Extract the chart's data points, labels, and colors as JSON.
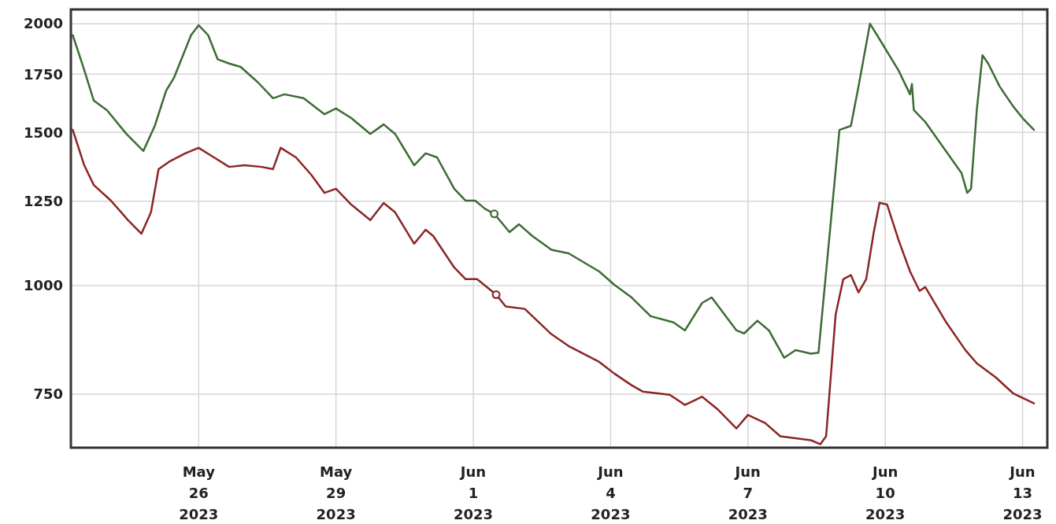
{
  "chart_data": {
    "type": "line",
    "log": true,
    "grid": true,
    "line_style": "solid",
    "ylim": [
      651,
      2077
    ],
    "yticks": [
      750,
      1000,
      1250,
      1500,
      1750,
      2000
    ],
    "xlim": [
      "2023-05-23T05:00",
      "2023-06-13T13:00"
    ],
    "xticks": [
      {
        "value": "2023-05-26",
        "label": "May 26 2023"
      },
      {
        "value": "2023-05-29",
        "label": "May 29 2023"
      },
      {
        "value": "2023-06-01",
        "label": "Jun 1 2023"
      },
      {
        "value": "2023-06-04",
        "label": "Jun 4 2023"
      },
      {
        "value": "2023-06-07",
        "label": "Jun 7 2023"
      },
      {
        "value": "2023-06-10",
        "label": "Jun 10 2023"
      },
      {
        "value": "2023-06-13",
        "label": "Jun 13 2023"
      }
    ],
    "series": [
      {
        "color": "#3d6b35",
        "x": [
          "2023-05-23T06:00",
          "2023-05-23T12:00",
          "2023-05-23T17:00",
          "2023-05-24T00:00",
          "2023-05-24T10:00",
          "2023-05-24T19:00",
          "2023-05-25T01:00",
          "2023-05-25T07:00",
          "2023-05-25T11:00",
          "2023-05-25T20:00",
          "2023-05-26T00:00",
          "2023-05-26T05:00",
          "2023-05-26T10:00",
          "2023-05-26T16:00",
          "2023-05-26T22:00",
          "2023-05-27T07:00",
          "2023-05-27T15:00",
          "2023-05-27T21:00",
          "2023-05-28T07:00",
          "2023-05-28T18:00",
          "2023-05-29T00:00",
          "2023-05-29T08:00",
          "2023-05-29T18:00",
          "2023-05-30T01:00",
          "2023-05-30T07:00",
          "2023-05-30T17:00",
          "2023-05-30T23:00",
          "2023-05-31T05:00",
          "2023-05-31T14:00",
          "2023-05-31T20:00",
          "2023-06-01T01:00",
          "2023-06-01T06:00",
          "2023-06-01T11:00",
          "2023-06-01T19:00",
          "2023-06-02T00:00",
          "2023-06-02T07:00",
          "2023-06-02T17:00",
          "2023-06-03T02:00",
          "2023-06-03T18:00",
          "2023-06-04T02:00",
          "2023-06-04T11:00",
          "2023-06-04T21:00",
          "2023-06-05T09:00",
          "2023-06-05T15:00",
          "2023-06-06T00:00",
          "2023-06-06T05:00",
          "2023-06-06T18:00",
          "2023-06-06T22:00",
          "2023-06-07T05:00",
          "2023-06-07T11:00",
          "2023-06-07T19:00",
          "2023-06-08T01:00",
          "2023-06-08T09:00",
          "2023-06-08T13:00",
          "2023-06-08T18:00",
          "2023-06-09T00:00",
          "2023-06-09T06:00",
          "2023-06-09T10:00",
          "2023-06-09T16:00",
          "2023-06-09T21:00",
          "2023-06-10T07:00",
          "2023-06-10T13:00",
          "2023-06-10T14:00",
          "2023-06-10T15:00",
          "2023-06-10T21:00",
          "2023-06-11T16:00",
          "2023-06-11T19:00",
          "2023-06-11T21:00",
          "2023-06-12T00:00",
          "2023-06-12T03:00",
          "2023-06-12T06:00",
          "2023-06-12T12:00",
          "2023-06-12T19:00",
          "2023-06-13T00:00",
          "2023-06-13T06:00"
        ],
        "values": [
          1940,
          1770,
          1632,
          1590,
          1495,
          1428,
          1526,
          1676,
          1732,
          1940,
          1992,
          1940,
          1820,
          1800,
          1784,
          1713,
          1642,
          1659,
          1642,
          1574,
          1598,
          1558,
          1494,
          1532,
          1494,
          1375,
          1419,
          1404,
          1292,
          1252,
          1252,
          1226,
          1209,
          1152,
          1176,
          1140,
          1099,
          1089,
          1038,
          1002,
          969,
          922,
          907,
          888,
          955,
          969,
          888,
          881,
          911,
          888,
          826,
          843,
          835,
          837,
          1094,
          1510,
          1526,
          1694,
          2000,
          1920,
          1767,
          1659,
          1705,
          1591,
          1542,
          1347,
          1278,
          1292,
          1591,
          1840,
          1800,
          1694,
          1608,
          1558,
          1510
        ]
      },
      {
        "color": "#8b2525",
        "x": [
          "2023-05-23T06:00",
          "2023-05-23T12:00",
          "2023-05-23T17:00",
          "2023-05-24T02:00",
          "2023-05-24T11:00",
          "2023-05-24T18:00",
          "2023-05-24T23:00",
          "2023-05-25T03:00",
          "2023-05-25T09:00",
          "2023-05-25T17:00",
          "2023-05-26T00:00",
          "2023-05-26T08:00",
          "2023-05-26T16:00",
          "2023-05-27T00:00",
          "2023-05-27T09:00",
          "2023-05-27T15:00",
          "2023-05-27T19:00",
          "2023-05-28T03:00",
          "2023-05-28T11:00",
          "2023-05-28T18:00",
          "2023-05-29T00:00",
          "2023-05-29T08:00",
          "2023-05-29T18:00",
          "2023-05-30T01:00",
          "2023-05-30T07:00",
          "2023-05-30T17:00",
          "2023-05-30T23:00",
          "2023-05-31T03:00",
          "2023-05-31T14:00",
          "2023-05-31T20:00",
          "2023-06-01T02:00",
          "2023-06-01T12:00",
          "2023-06-01T17:00",
          "2023-06-02T03:00",
          "2023-06-02T17:00",
          "2023-06-03T02:00",
          "2023-06-03T18:00",
          "2023-06-04T02:00",
          "2023-06-04T11:00",
          "2023-06-04T17:00",
          "2023-06-05T07:00",
          "2023-06-05T15:00",
          "2023-06-06T00:00",
          "2023-06-06T08:00",
          "2023-06-06T18:00",
          "2023-06-07T00:00",
          "2023-06-07T09:00",
          "2023-06-07T17:00",
          "2023-06-08T09:00",
          "2023-06-08T14:00",
          "2023-06-08T17:00",
          "2023-06-08T22:00",
          "2023-06-09T02:00",
          "2023-06-09T06:00",
          "2023-06-09T10:00",
          "2023-06-09T14:00",
          "2023-06-09T18:00",
          "2023-06-09T21:00",
          "2023-06-10T01:00",
          "2023-06-10T07:00",
          "2023-06-10T13:00",
          "2023-06-10T18:00",
          "2023-06-10T21:00",
          "2023-06-11T08:00",
          "2023-06-11T18:00",
          "2023-06-12T00:00",
          "2023-06-12T10:00",
          "2023-06-12T19:00",
          "2023-06-13T01:00",
          "2023-06-13T06:00"
        ],
        "values": [
          1510,
          1375,
          1305,
          1252,
          1189,
          1147,
          1214,
          1361,
          1390,
          1419,
          1440,
          1404,
          1369,
          1375,
          1369,
          1361,
          1440,
          1404,
          1341,
          1278,
          1292,
          1239,
          1189,
          1244,
          1214,
          1117,
          1159,
          1140,
          1049,
          1017,
          1017,
          976,
          946,
          940,
          879,
          852,
          817,
          792,
          768,
          755,
          749,
          729,
          745,
          721,
          685,
          710,
          695,
          671,
          664,
          657,
          671,
          926,
          1017,
          1028,
          982,
          1017,
          1152,
          1245,
          1239,
          1128,
          1038,
          986,
          996,
          907,
          843,
          814,
          784,
          752,
          741,
          732
        ]
      },
      {
        "type": "scatter",
        "marker": "circle",
        "color": "#3d6b35",
        "x": [
          "2023-06-01T11:00"
        ],
        "values": [
          1209
        ]
      },
      {
        "type": "scatter",
        "marker": "circle",
        "color": "#8b2525",
        "x": [
          "2023-06-01T12:00"
        ],
        "values": [
          976
        ]
      }
    ]
  }
}
